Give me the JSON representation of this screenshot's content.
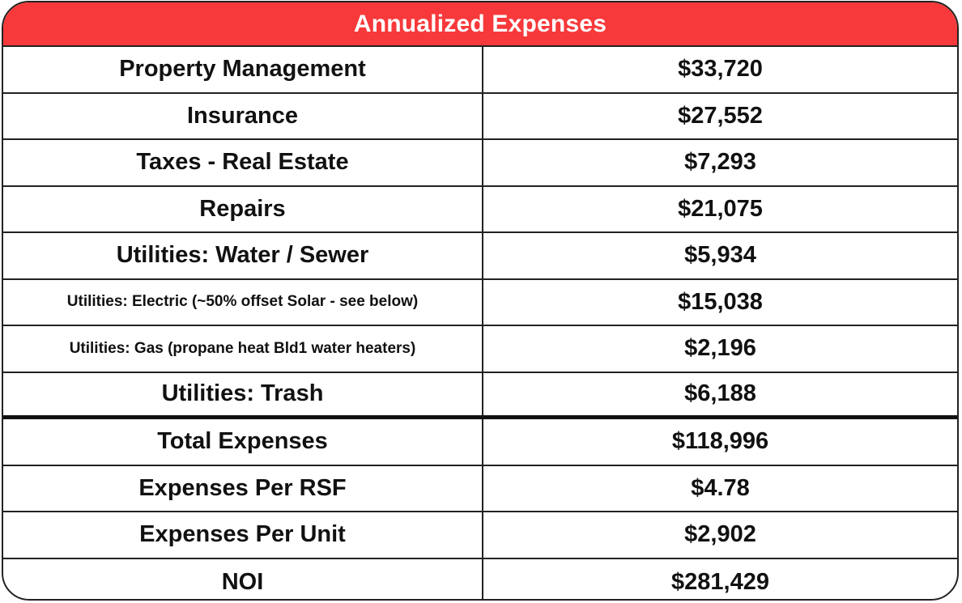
{
  "header": {
    "title": "Annualized Expenses",
    "background_color": "#f7393b",
    "text_color": "#ffffff"
  },
  "rows": [
    {
      "label": "Property Management",
      "value": "$33,720"
    },
    {
      "label": "Insurance",
      "value": "$27,552"
    },
    {
      "label": "Taxes - Real Estate",
      "value": "$7,293"
    },
    {
      "label": "Repairs",
      "value": "$21,075"
    },
    {
      "label": "Utilities: Water / Sewer",
      "value": "$5,934"
    },
    {
      "label": "Utilities: Electric (~50% offset Solar - see below)",
      "value": "$15,038"
    },
    {
      "label": "Utilities: Gas (propane heat Bld1 water heaters)",
      "value": "$2,196"
    },
    {
      "label": "Utilities: Trash",
      "value": "$6,188"
    }
  ],
  "summary": [
    {
      "label": "Total Expenses",
      "value": "$118,996"
    },
    {
      "label": "Expenses Per RSF",
      "value": "$4.78"
    },
    {
      "label": "Expenses Per Unit",
      "value": "$2,902"
    },
    {
      "label": "NOI",
      "value": "$281,429"
    }
  ]
}
